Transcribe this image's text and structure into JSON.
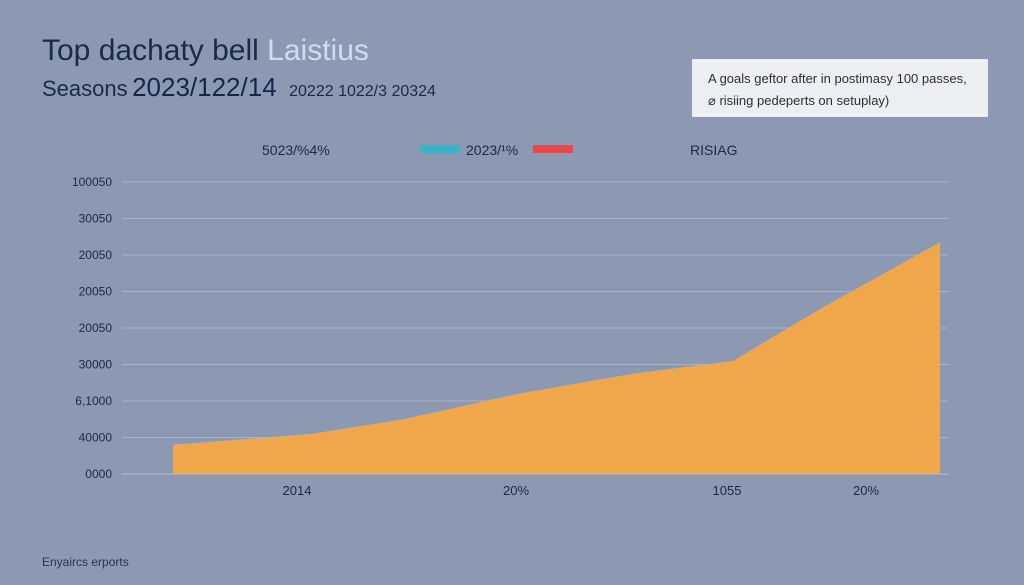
{
  "chart_data": {
    "type": "area",
    "title_main": "Top dachaty bell",
    "title_light": "Laistius",
    "subtitle_prefix": "Seasons",
    "subtitle_emph": "2023/122/14",
    "subtitle_suffix": "20222 1022/3 20324",
    "annotation": [
      "A goals geftor after in postimasy 100 passes,",
      "⌀ risiing pedeperts on setuplay)"
    ],
    "legend": [
      {
        "label": "5023/%4%",
        "color": null
      },
      {
        "label": "2023/¹%",
        "color": "#35b6c8"
      },
      {
        "label": "",
        "color": "#e8484a"
      },
      {
        "label": "RISIAG",
        "color": null
      }
    ],
    "y_tick_labels": [
      "0000",
      "40000",
      "6,1000",
      "30000",
      "20050",
      "20050",
      "20050",
      "30050",
      "100050"
    ],
    "x_tick_labels": [
      "2014",
      "20%",
      "1055",
      "20%"
    ],
    "series": [
      {
        "name": "area",
        "color": "#f0a64a",
        "x": [
          0,
          0.18,
          0.3,
          0.45,
          0.6,
          0.73,
          0.85,
          1.0
        ],
        "values": [
          0.8,
          1.1,
          1.5,
          2.2,
          2.75,
          3.1,
          4.6,
          6.35
        ]
      }
    ],
    "ylim": [
      0,
      8
    ],
    "xlim": [
      0,
      1.0
    ],
    "grid": true
  },
  "footer": "Enyaircs erports"
}
